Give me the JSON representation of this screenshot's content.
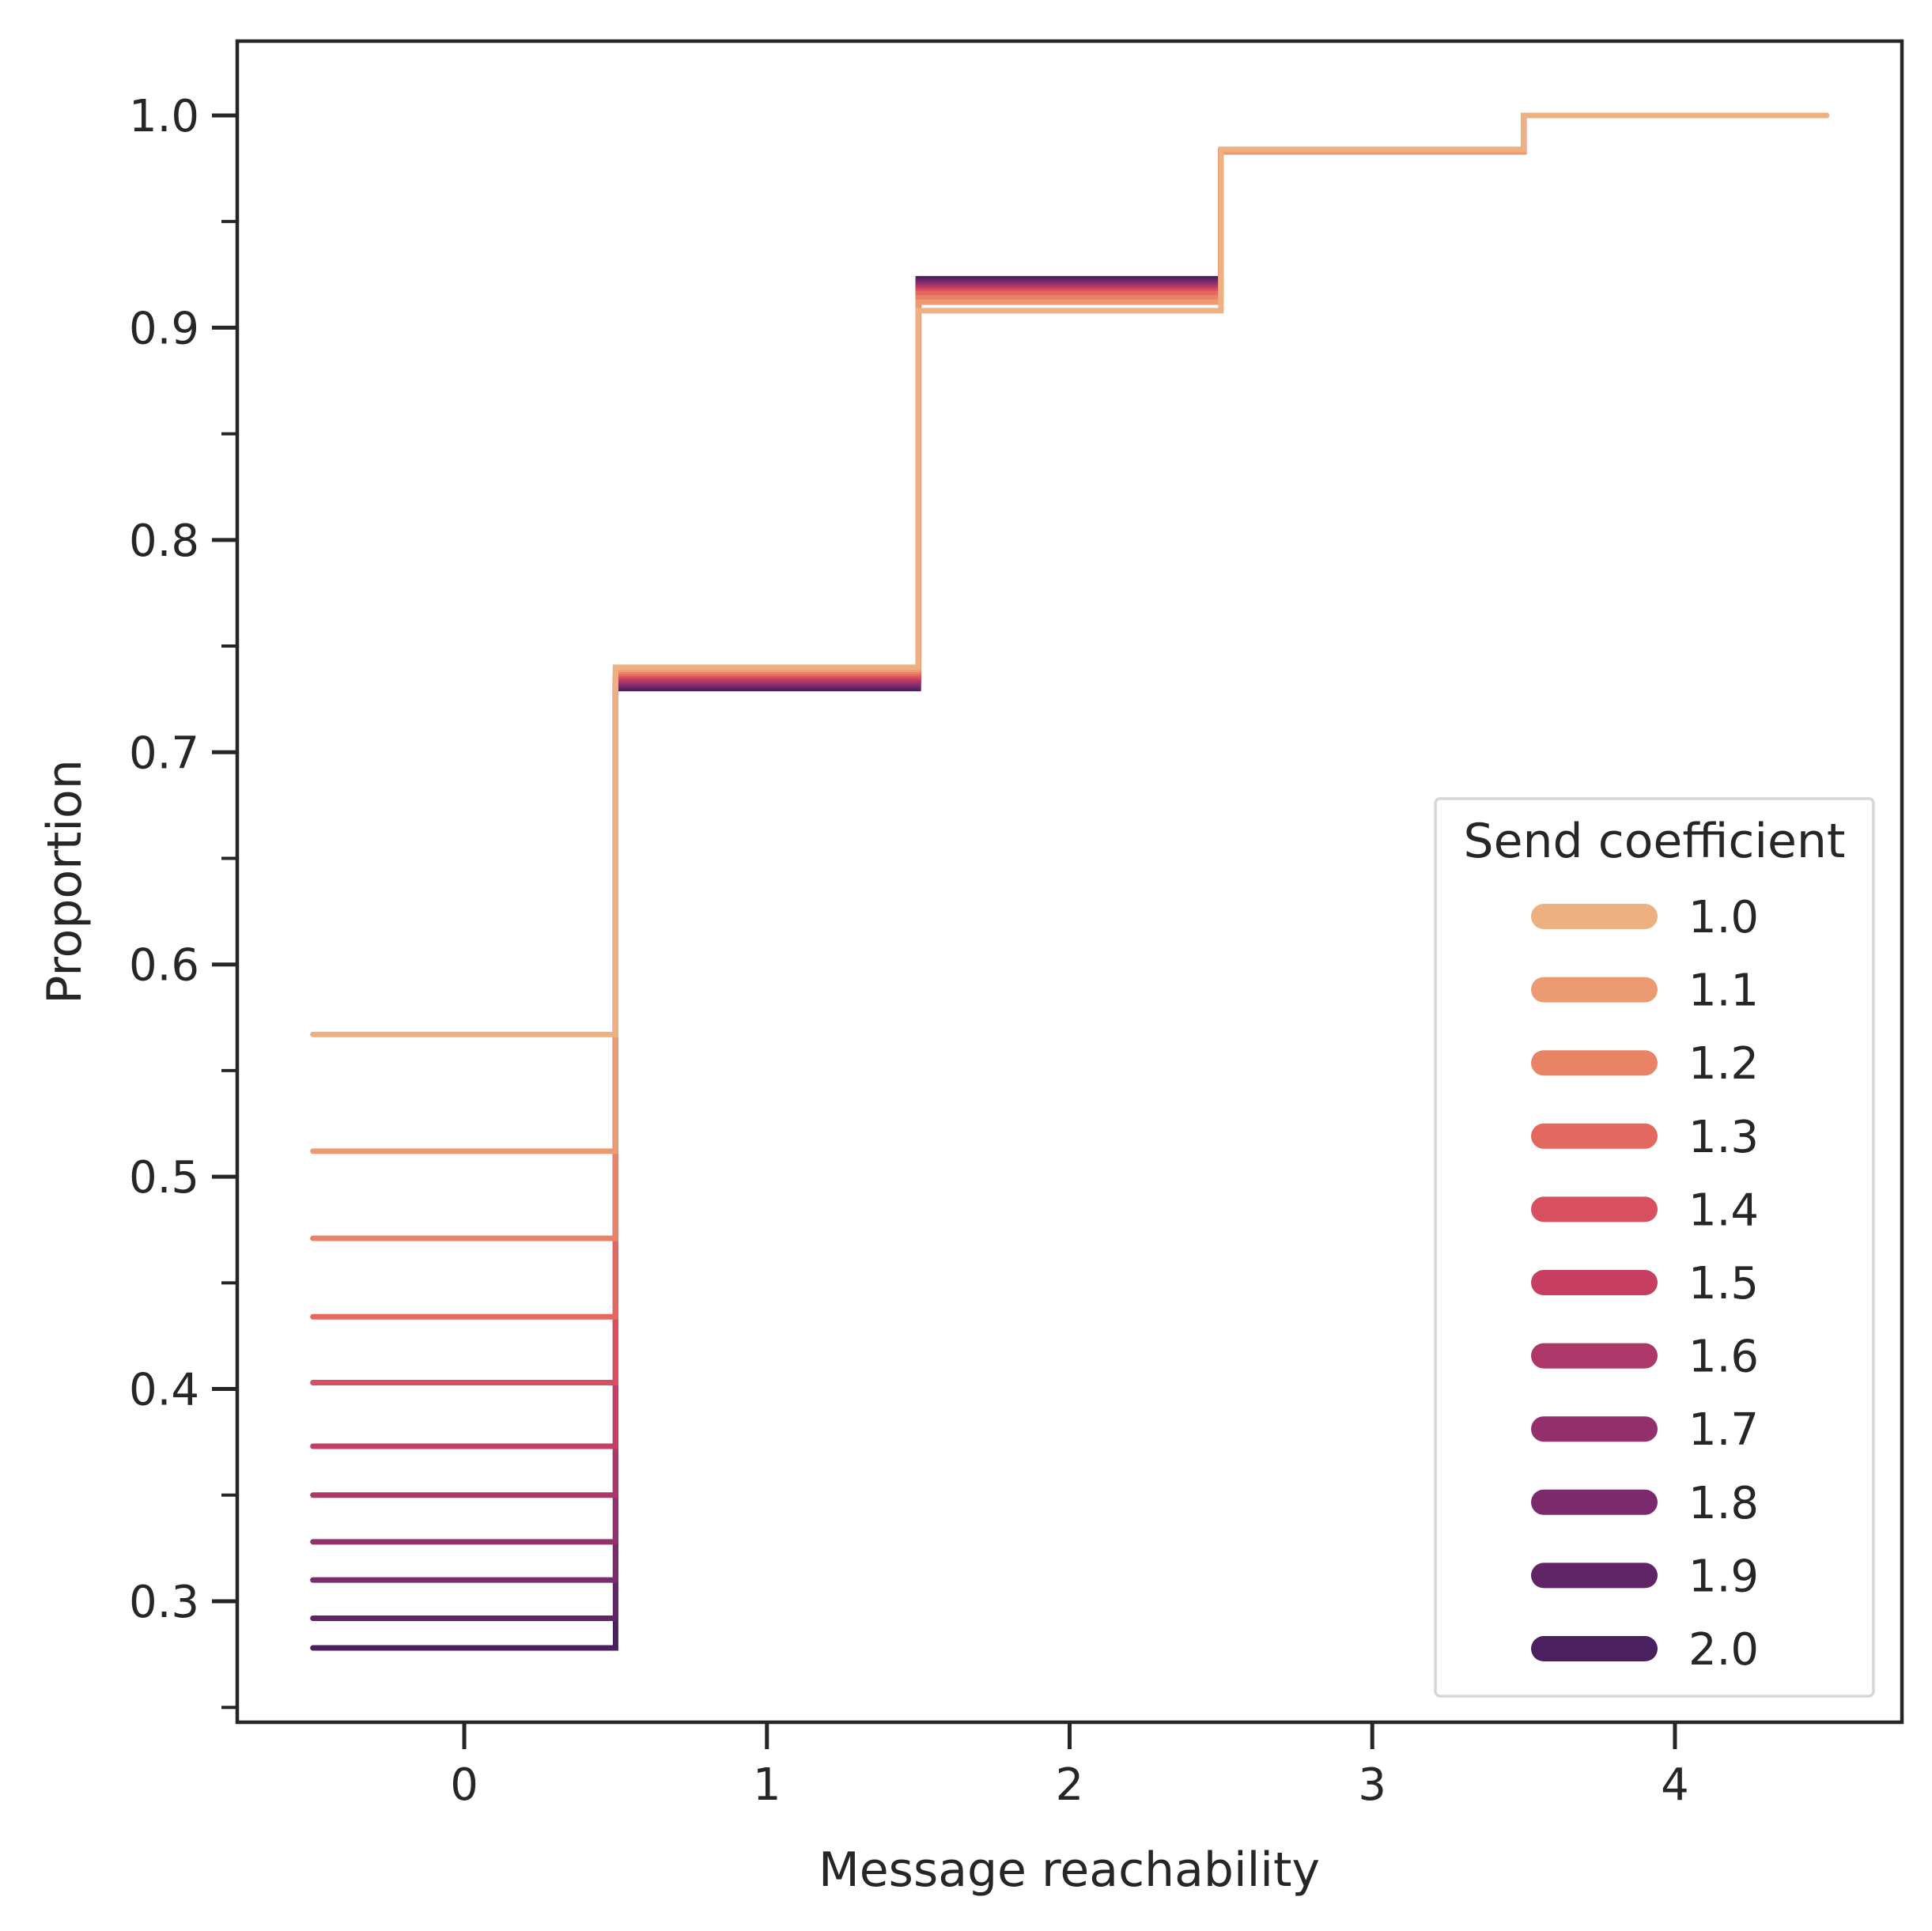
{
  "chart_data": {
    "type": "line",
    "step": "mid",
    "xlabel": "Message reachability",
    "ylabel": "Proportion",
    "xlim": [
      -0.75,
      4.75
    ],
    "ylim": [
      0.243,
      1.035
    ],
    "x_ticks": [
      0,
      1,
      2,
      3,
      4
    ],
    "x_tick_labels": [
      "0",
      "1",
      "2",
      "3",
      "4"
    ],
    "y_ticks": [
      0.3,
      0.4,
      0.5,
      0.6,
      0.7,
      0.8,
      0.9,
      1.0
    ],
    "y_tick_labels": [
      "0.3",
      "0.4",
      "0.5",
      "0.6",
      "0.7",
      "0.8",
      "0.9",
      "1.0"
    ],
    "y_minor_ticks": [
      0.25,
      0.35,
      0.45,
      0.55,
      0.65,
      0.75,
      0.85,
      0.95
    ],
    "grid": false,
    "x": [
      0,
      1,
      2,
      3,
      4
    ],
    "legend": {
      "title": "Send coefficient",
      "placement": "lower-right"
    },
    "series": [
      {
        "name": "1.0",
        "color": "#edb081",
        "values": [
          0.567,
          0.74,
          0.908,
          0.984,
          1.0
        ]
      },
      {
        "name": "1.1",
        "color": "#eb9a72",
        "values": [
          0.512,
          0.739,
          0.912,
          0.983,
          1.0
        ]
      },
      {
        "name": "1.2",
        "color": "#e88366",
        "values": [
          0.471,
          0.738,
          0.914,
          0.983,
          1.0
        ]
      },
      {
        "name": "1.3",
        "color": "#e3685f",
        "values": [
          0.434,
          0.737,
          0.916,
          0.983,
          1.0
        ]
      },
      {
        "name": "1.4",
        "color": "#d8505f",
        "values": [
          0.403,
          0.736,
          0.917,
          0.983,
          1.0
        ]
      },
      {
        "name": "1.5",
        "color": "#c63f63",
        "values": [
          0.373,
          0.735,
          0.918,
          0.983,
          1.0
        ]
      },
      {
        "name": "1.6",
        "color": "#ad3769",
        "values": [
          0.35,
          0.734,
          0.919,
          0.983,
          1.0
        ]
      },
      {
        "name": "1.7",
        "color": "#93306d",
        "values": [
          0.328,
          0.733,
          0.92,
          0.983,
          1.0
        ]
      },
      {
        "name": "1.8",
        "color": "#7b2b6c",
        "values": [
          0.31,
          0.732,
          0.921,
          0.983,
          1.0
        ]
      },
      {
        "name": "1.9",
        "color": "#612567",
        "values": [
          0.292,
          0.731,
          0.922,
          0.983,
          1.0
        ]
      },
      {
        "name": "2.0",
        "color": "#4a215e",
        "values": [
          0.278,
          0.73,
          0.923,
          0.983,
          1.0
        ]
      }
    ]
  }
}
